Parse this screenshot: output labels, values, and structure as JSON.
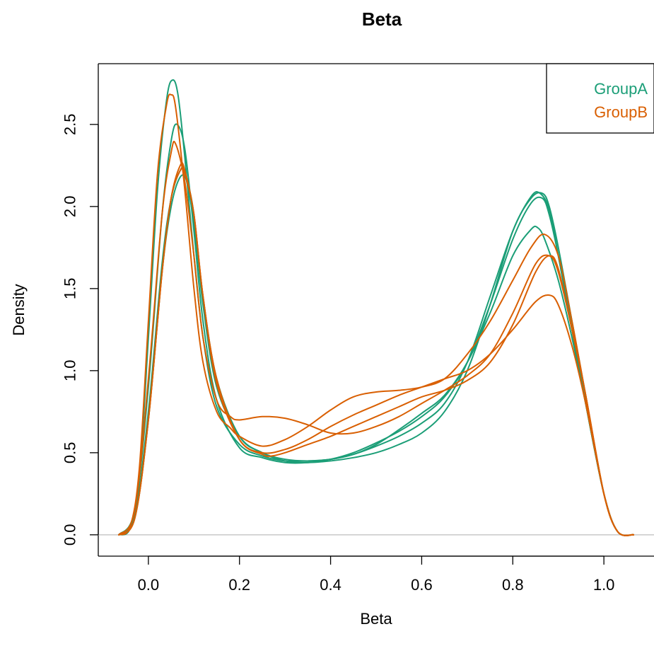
{
  "chart_data": {
    "type": "line",
    "title": "Beta",
    "xlabel": "Beta",
    "ylabel": "Density",
    "xlim": [
      -0.11,
      1.11
    ],
    "ylim": [
      -0.13,
      2.87
    ],
    "xticks": [
      0.0,
      0.2,
      0.4,
      0.6,
      0.8,
      1.0
    ],
    "xtick_labels": [
      "0.0",
      "0.2",
      "0.4",
      "0.6",
      "0.8",
      "1.0"
    ],
    "yticks": [
      0.0,
      0.5,
      1.0,
      1.5,
      2.0,
      2.5
    ],
    "ytick_labels": [
      "0.0",
      "0.5",
      "1.0",
      "1.5",
      "2.0",
      "2.5"
    ],
    "reference_line": {
      "y": 0,
      "color": "#bebebe"
    },
    "legend": {
      "position": "top-right",
      "entries": [
        {
          "label": "GroupA",
          "color": "#1b9e77"
        },
        {
          "label": "GroupB",
          "color": "#d95f02"
        }
      ]
    },
    "series": [
      {
        "group": "GroupA",
        "color": "#1b9e77",
        "x": [
          -0.065,
          -0.04,
          -0.02,
          0.0,
          0.02,
          0.04,
          0.053,
          0.065,
          0.08,
          0.1,
          0.12,
          0.15,
          0.2,
          0.25,
          0.3,
          0.35,
          0.4,
          0.45,
          0.5,
          0.55,
          0.6,
          0.65,
          0.7,
          0.75,
          0.8,
          0.84,
          0.86,
          0.88,
          0.9,
          0.93,
          0.96,
          1.0,
          1.03,
          1.065
        ],
        "y": [
          0.0,
          0.04,
          0.35,
          1.2,
          2.1,
          2.65,
          2.77,
          2.68,
          2.3,
          1.7,
          1.2,
          0.78,
          0.55,
          0.48,
          0.45,
          0.45,
          0.46,
          0.49,
          0.54,
          0.6,
          0.68,
          0.8,
          1.05,
          1.45,
          1.85,
          2.06,
          2.08,
          1.98,
          1.7,
          1.25,
          0.8,
          0.25,
          0.02,
          0.0
        ]
      },
      {
        "group": "GroupA",
        "color": "#1b9e77",
        "x": [
          -0.065,
          -0.03,
          0.0,
          0.03,
          0.05,
          0.063,
          0.08,
          0.1,
          0.12,
          0.15,
          0.2,
          0.25,
          0.3,
          0.35,
          0.4,
          0.45,
          0.5,
          0.55,
          0.6,
          0.65,
          0.7,
          0.75,
          0.8,
          0.84,
          0.865,
          0.88,
          0.9,
          0.93,
          0.96,
          1.0,
          1.03,
          1.065
        ],
        "y": [
          0.0,
          0.15,
          0.9,
          1.95,
          2.4,
          2.5,
          2.35,
          1.85,
          1.3,
          0.82,
          0.53,
          0.47,
          0.44,
          0.44,
          0.46,
          0.5,
          0.56,
          0.63,
          0.72,
          0.84,
          1.05,
          1.4,
          1.8,
          2.02,
          2.05,
          1.95,
          1.7,
          1.25,
          0.8,
          0.25,
          0.02,
          0.0
        ]
      },
      {
        "group": "GroupA",
        "color": "#1b9e77",
        "x": [
          -0.065,
          -0.03,
          0.0,
          0.03,
          0.05,
          0.07,
          0.08,
          0.1,
          0.12,
          0.15,
          0.2,
          0.25,
          0.3,
          0.35,
          0.4,
          0.45,
          0.5,
          0.55,
          0.6,
          0.65,
          0.7,
          0.75,
          0.8,
          0.84,
          0.855,
          0.87,
          0.9,
          0.93,
          0.96,
          1.0,
          1.03,
          1.065
        ],
        "y": [
          0.0,
          0.12,
          0.75,
          1.65,
          2.05,
          2.22,
          2.2,
          1.9,
          1.4,
          0.9,
          0.6,
          0.5,
          0.46,
          0.45,
          0.46,
          0.49,
          0.55,
          0.64,
          0.74,
          0.85,
          1.05,
          1.35,
          1.7,
          1.86,
          1.87,
          1.8,
          1.55,
          1.2,
          0.8,
          0.25,
          0.02,
          0.0
        ]
      },
      {
        "group": "GroupA",
        "color": "#1b9e77",
        "x": [
          -0.065,
          -0.03,
          0.0,
          0.03,
          0.05,
          0.07,
          0.085,
          0.1,
          0.12,
          0.15,
          0.2,
          0.25,
          0.3,
          0.35,
          0.4,
          0.45,
          0.5,
          0.55,
          0.6,
          0.65,
          0.7,
          0.75,
          0.8,
          0.84,
          0.865,
          0.88,
          0.9,
          0.93,
          0.96,
          1.0,
          1.03,
          1.065
        ],
        "y": [
          0.0,
          0.1,
          0.7,
          1.6,
          2.0,
          2.18,
          2.15,
          1.95,
          1.45,
          0.95,
          0.6,
          0.5,
          0.45,
          0.44,
          0.45,
          0.47,
          0.5,
          0.55,
          0.62,
          0.75,
          1.0,
          1.4,
          1.85,
          2.05,
          2.08,
          2.0,
          1.75,
          1.3,
          0.85,
          0.25,
          0.02,
          0.0
        ]
      },
      {
        "group": "GroupB",
        "color": "#d95f02",
        "x": [
          -0.065,
          -0.04,
          -0.02,
          0.0,
          0.02,
          0.04,
          0.05,
          0.06,
          0.08,
          0.1,
          0.12,
          0.15,
          0.18,
          0.2,
          0.25,
          0.3,
          0.35,
          0.4,
          0.45,
          0.5,
          0.55,
          0.6,
          0.65,
          0.7,
          0.75,
          0.8,
          0.84,
          0.87,
          0.9,
          0.93,
          0.96,
          1.0,
          1.03,
          1.065
        ],
        "y": [
          0.0,
          0.05,
          0.4,
          1.3,
          2.2,
          2.62,
          2.68,
          2.6,
          2.1,
          1.5,
          1.05,
          0.75,
          0.65,
          0.6,
          0.54,
          0.58,
          0.66,
          0.76,
          0.84,
          0.87,
          0.88,
          0.9,
          0.95,
          1.1,
          1.3,
          1.55,
          1.75,
          1.83,
          1.7,
          1.3,
          0.85,
          0.25,
          0.02,
          0.0
        ]
      },
      {
        "group": "GroupB",
        "color": "#d95f02",
        "x": [
          -0.065,
          -0.03,
          0.0,
          0.03,
          0.05,
          0.06,
          0.08,
          0.1,
          0.12,
          0.15,
          0.18,
          0.2,
          0.25,
          0.3,
          0.35,
          0.4,
          0.45,
          0.5,
          0.55,
          0.6,
          0.65,
          0.7,
          0.75,
          0.8,
          0.85,
          0.88,
          0.9,
          0.93,
          0.96,
          1.0,
          1.03,
          1.065
        ],
        "y": [
          0.0,
          0.15,
          0.95,
          1.95,
          2.33,
          2.38,
          2.15,
          1.7,
          1.2,
          0.82,
          0.72,
          0.7,
          0.72,
          0.71,
          0.67,
          0.62,
          0.62,
          0.66,
          0.72,
          0.8,
          0.88,
          0.97,
          1.1,
          1.35,
          1.65,
          1.7,
          1.6,
          1.25,
          0.85,
          0.25,
          0.02,
          0.0
        ]
      },
      {
        "group": "GroupB",
        "color": "#d95f02",
        "x": [
          -0.065,
          -0.03,
          0.0,
          0.03,
          0.05,
          0.07,
          0.08,
          0.1,
          0.12,
          0.15,
          0.2,
          0.25,
          0.3,
          0.35,
          0.4,
          0.45,
          0.5,
          0.55,
          0.6,
          0.65,
          0.7,
          0.75,
          0.8,
          0.85,
          0.88,
          0.9,
          0.93,
          0.96,
          1.0,
          1.03,
          1.065
        ],
        "y": [
          0.0,
          0.1,
          0.7,
          1.6,
          2.05,
          2.25,
          2.22,
          1.95,
          1.45,
          0.92,
          0.58,
          0.5,
          0.52,
          0.58,
          0.66,
          0.73,
          0.79,
          0.85,
          0.9,
          0.95,
          1.0,
          1.1,
          1.25,
          1.42,
          1.46,
          1.4,
          1.15,
          0.8,
          0.25,
          0.02,
          0.0
        ]
      },
      {
        "group": "GroupB",
        "color": "#d95f02",
        "x": [
          -0.065,
          -0.03,
          0.0,
          0.03,
          0.05,
          0.07,
          0.08,
          0.1,
          0.12,
          0.15,
          0.2,
          0.25,
          0.27,
          0.3,
          0.35,
          0.4,
          0.45,
          0.5,
          0.55,
          0.6,
          0.65,
          0.7,
          0.75,
          0.8,
          0.85,
          0.88,
          0.9,
          0.93,
          0.96,
          1.0,
          1.03,
          1.065
        ],
        "y": [
          0.0,
          0.1,
          0.7,
          1.6,
          2.05,
          2.22,
          2.2,
          1.95,
          1.45,
          0.95,
          0.58,
          0.49,
          0.48,
          0.5,
          0.55,
          0.6,
          0.66,
          0.72,
          0.78,
          0.84,
          0.88,
          0.94,
          1.05,
          1.28,
          1.6,
          1.7,
          1.62,
          1.25,
          0.85,
          0.25,
          0.02,
          0.0
        ]
      }
    ]
  }
}
